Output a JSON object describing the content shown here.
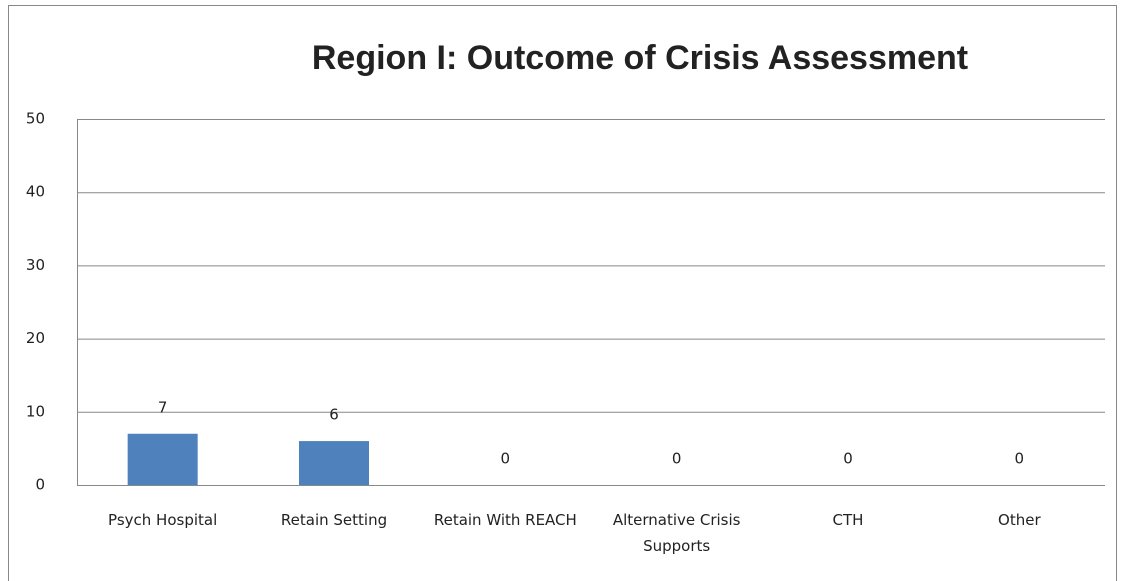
{
  "chart_data": {
    "type": "bar",
    "title": "Region I: Outcome of Crisis Assessment",
    "categories": [
      "Psych Hospital",
      "Retain Setting",
      "Retain With REACH",
      "Alternative Crisis Supports",
      "CTH",
      "Other"
    ],
    "values": [
      7,
      6,
      0,
      0,
      0,
      0
    ],
    "color": "#4f81bd",
    "ylim": [
      0,
      50
    ],
    "yticks": [
      0,
      10,
      20,
      30,
      40,
      50
    ],
    "grid": true
  }
}
